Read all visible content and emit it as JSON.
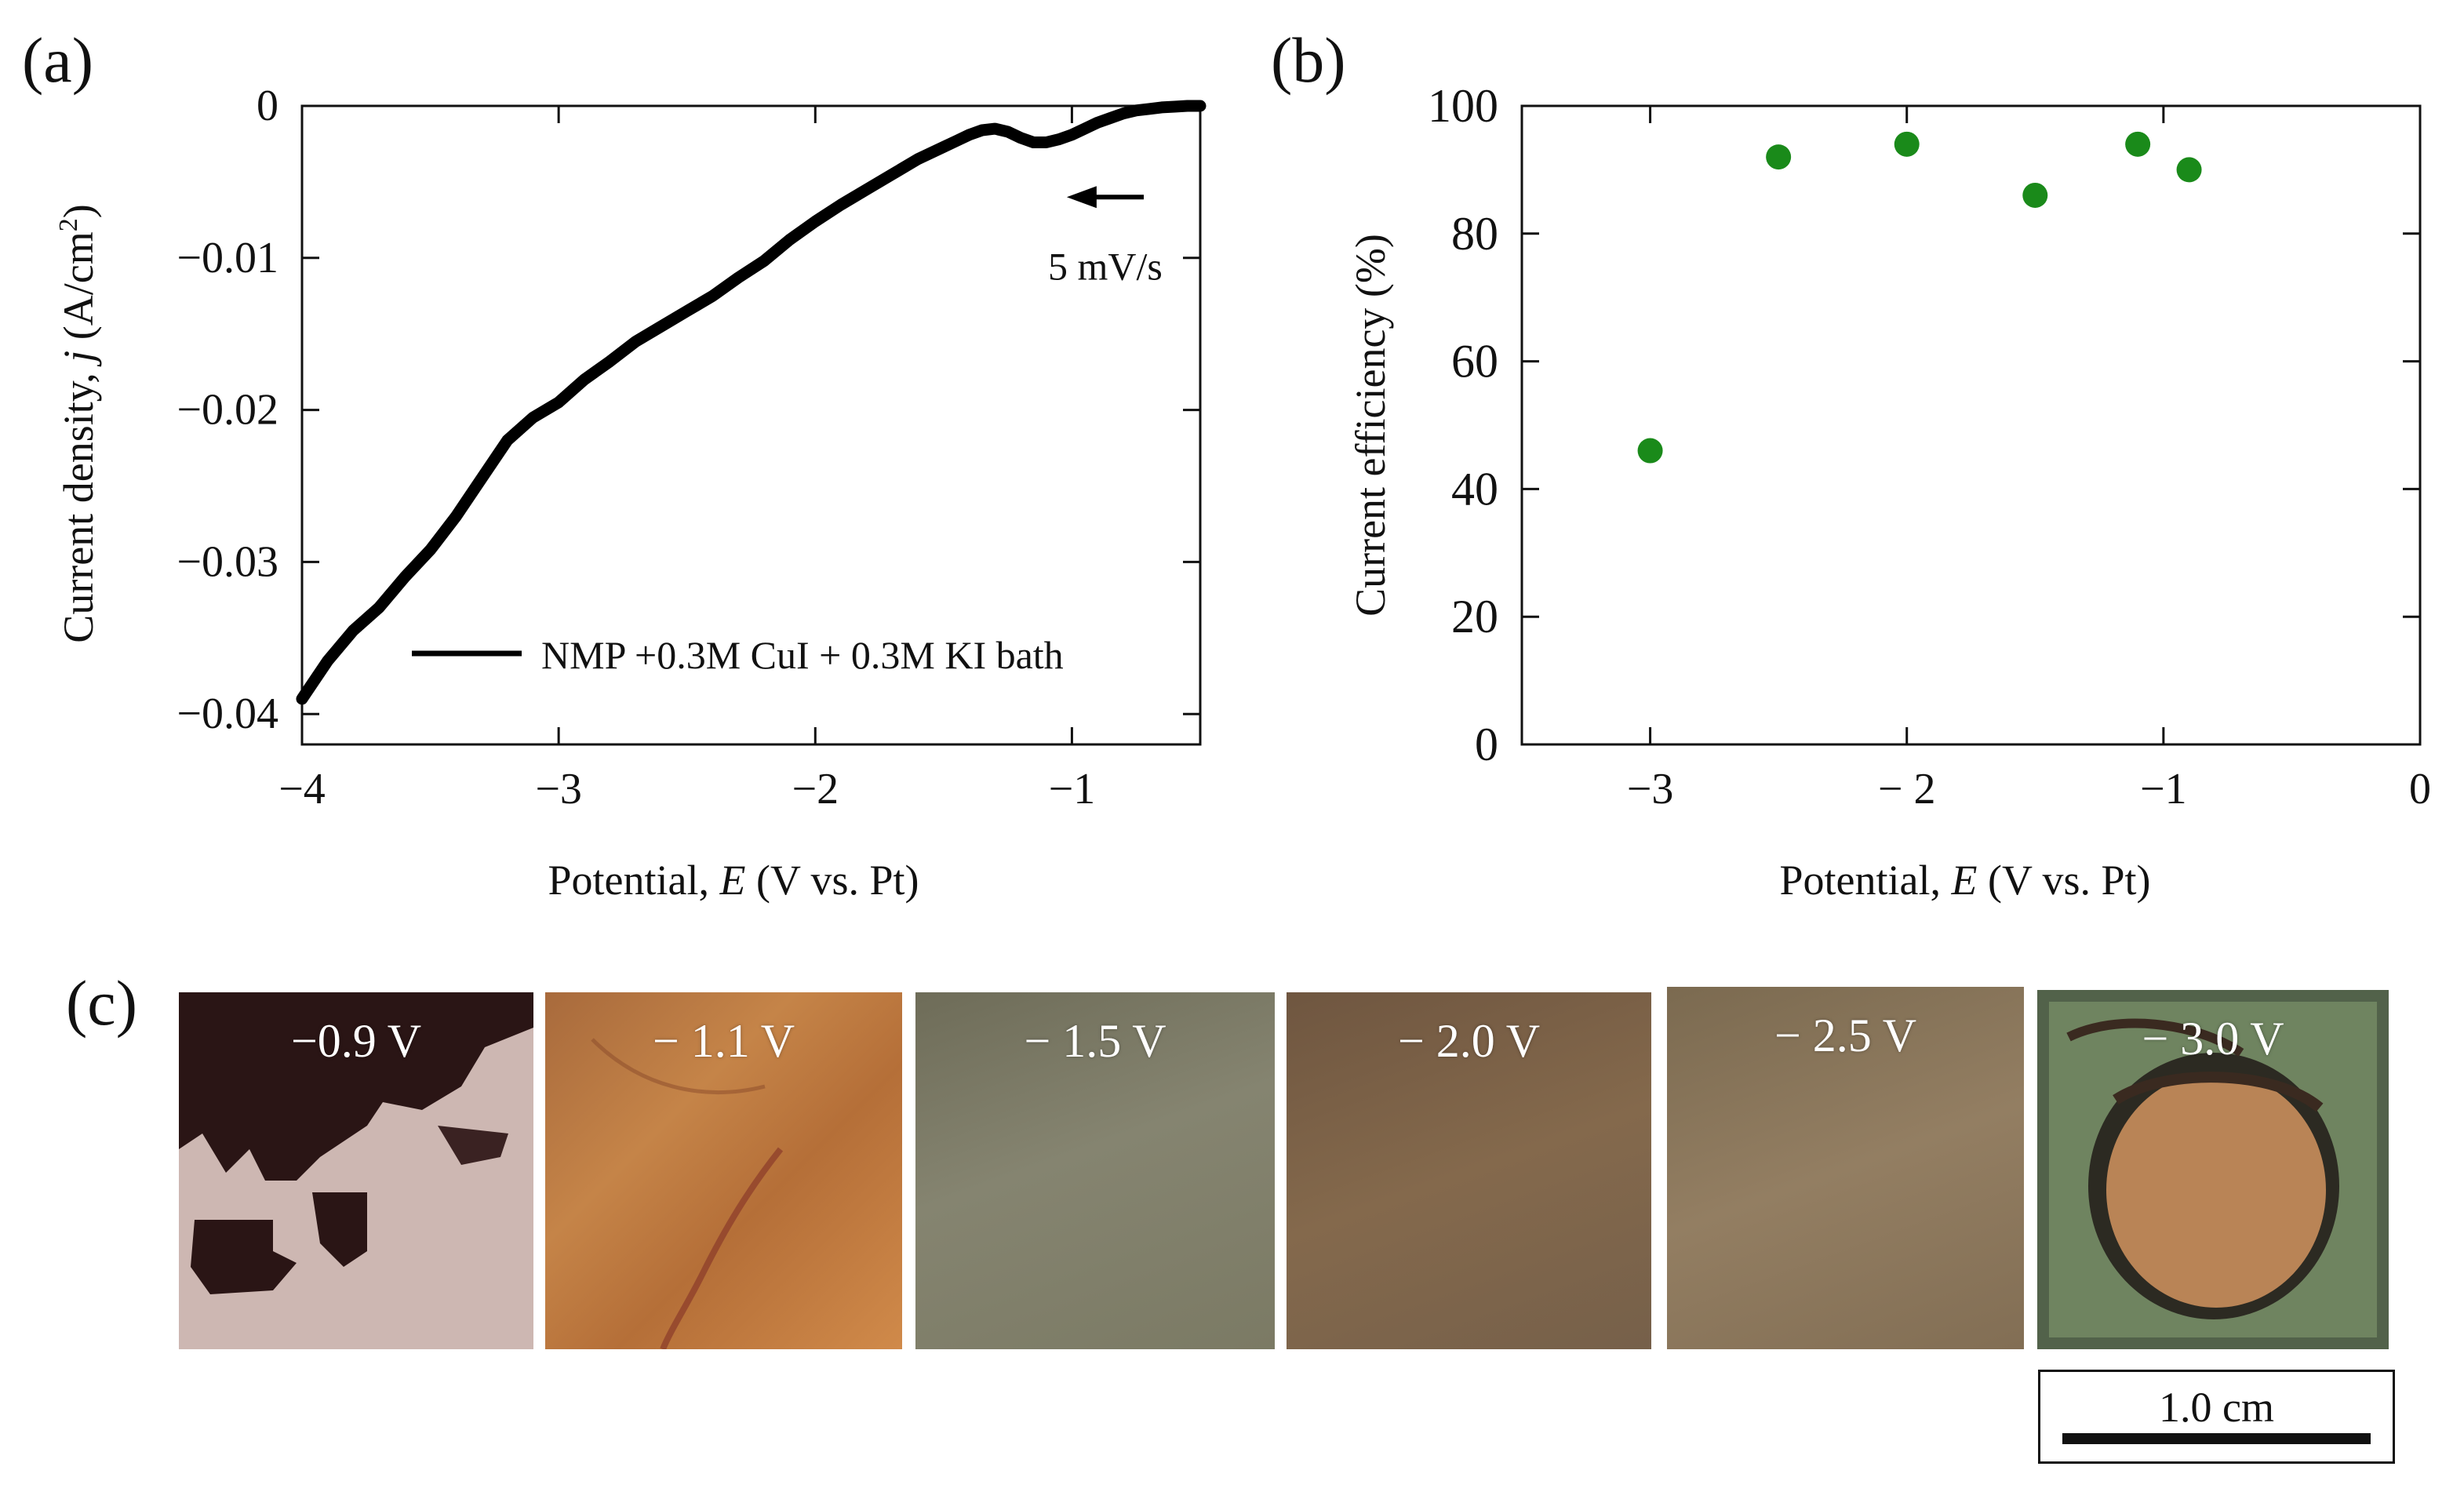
{
  "panel_labels": {
    "a": "(a)",
    "b": "(b)",
    "c": "(c)"
  },
  "chart_data": [
    {
      "type": "line",
      "panel": "(a)",
      "title": "",
      "xlabel_prefix": "Potential, ",
      "xlabel_var": "E",
      "xlabel_suffix": " (V vs. Pt)",
      "ylabel_prefix": "Current density, ",
      "ylabel_var": "j",
      "ylabel_unit": " (A/cm",
      "ylabel_sup": "2",
      "ylabel_close": ")",
      "xlim": [
        -4,
        -0.5
      ],
      "ylim": [
        -0.042,
        0
      ],
      "xticks": [
        -4,
        -3,
        -2,
        -1
      ],
      "xtick_labels": [
        "−4",
        "−3",
        "−2",
        "−1"
      ],
      "yticks": [
        0,
        -0.01,
        -0.02,
        -0.03,
        -0.04
      ],
      "ytick_labels": [
        "0",
        "−0.01",
        "−0.02",
        "−0.03",
        "−0.04"
      ],
      "series": [
        {
          "name": "NMP +0.3M CuI + 0.3M KI bath",
          "color": "#000000",
          "x": [
            -4.0,
            -3.9,
            -3.8,
            -3.7,
            -3.6,
            -3.5,
            -3.4,
            -3.3,
            -3.2,
            -3.1,
            -3.0,
            -2.9,
            -2.8,
            -2.7,
            -2.6,
            -2.5,
            -2.4,
            -2.3,
            -2.2,
            -2.1,
            -2.0,
            -1.9,
            -1.8,
            -1.7,
            -1.6,
            -1.5,
            -1.45,
            -1.4,
            -1.35,
            -1.3,
            -1.25,
            -1.2,
            -1.15,
            -1.1,
            -1.05,
            -1.0,
            -0.95,
            -0.9,
            -0.85,
            -0.8,
            -0.75,
            -0.7,
            -0.65,
            -0.6,
            -0.55,
            -0.5
          ],
          "y": [
            -0.039,
            -0.0365,
            -0.0345,
            -0.033,
            -0.031,
            -0.0292,
            -0.027,
            -0.0245,
            -0.022,
            -0.0205,
            -0.0195,
            -0.018,
            -0.0168,
            -0.0155,
            -0.0145,
            -0.0135,
            -0.0125,
            -0.0113,
            -0.0102,
            -0.0088,
            -0.0076,
            -0.0065,
            -0.0055,
            -0.0045,
            -0.0035,
            -0.0027,
            -0.0023,
            -0.0019,
            -0.0016,
            -0.0015,
            -0.0017,
            -0.0021,
            -0.0024,
            -0.0024,
            -0.0022,
            -0.0019,
            -0.0015,
            -0.0011,
            -0.0008,
            -0.0005,
            -0.0003,
            -0.0002,
            -0.0001,
            -5e-05,
            0.0,
            0.0
          ]
        }
      ],
      "annotation": {
        "text": "5 mV/s",
        "arrow_from_x": -0.72,
        "arrow_to_x": -1.02,
        "y": -0.006,
        "text_y": -0.0105
      },
      "legend": {
        "label": "NMP +0.3M CuI + 0.3M KI bath",
        "placement": "bottom-right"
      }
    },
    {
      "type": "scatter",
      "panel": "(b)",
      "title": "",
      "xlabel_prefix": "Potential, ",
      "xlabel_var": "E",
      "xlabel_suffix": " (V vs. Pt)",
      "ylabel": "Current efficiency  (%)",
      "xlim": [
        -3.5,
        0
      ],
      "ylim": [
        0,
        100
      ],
      "xticks": [
        -3,
        -2,
        -1,
        0
      ],
      "xtick_labels": [
        "−3",
        "− 2",
        "−1",
        "0"
      ],
      "yticks": [
        0,
        20,
        40,
        60,
        80,
        100
      ],
      "ytick_labels": [
        "0",
        "20",
        "40",
        "60",
        "80",
        "100"
      ],
      "series": [
        {
          "name": "Current efficiency",
          "color": "#1a8a1a",
          "x": [
            -3.0,
            -2.5,
            -2.0,
            -1.5,
            -1.1,
            -0.9
          ],
          "y": [
            46,
            92,
            94,
            86,
            94,
            90
          ]
        }
      ]
    }
  ],
  "photos": {
    "samples": [
      {
        "label": "−0.9 V",
        "color": "#c9b0ab"
      },
      {
        "label": "− 1.1 V",
        "color": "#b9703a"
      },
      {
        "label": "− 1.5 V",
        "color": "#7d7b66"
      },
      {
        "label": "− 2.0 V",
        "color": "#7e6548"
      },
      {
        "label": "− 2.5 V",
        "color": "#8c7659"
      },
      {
        "label": "− 3.0 V",
        "color": "#5f7350"
      }
    ],
    "scale_bar_label": "1.0 cm"
  }
}
